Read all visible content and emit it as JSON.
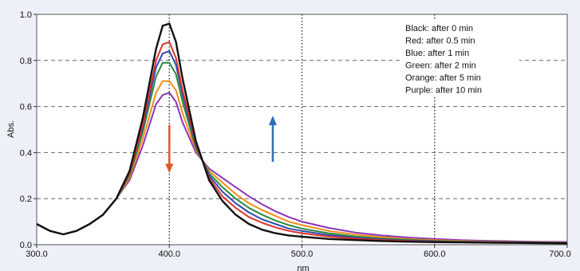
{
  "chart_data": {
    "type": "line",
    "xlabel": "nm",
    "ylabel": "Abs.",
    "xlim": [
      300,
      700
    ],
    "ylim": [
      0,
      1.0
    ],
    "x_ticks": [
      "300.0",
      "400.0",
      "500.0",
      "600.0",
      "700.0"
    ],
    "y_ticks": [
      "0.0",
      "0.2",
      "0.4",
      "0.6",
      "0.8",
      "1.0"
    ],
    "grid": "dotted vertical at 400, 500, 600 nm; dashed horizontal at 0.2-0.8",
    "legend": [
      {
        "text": "Black: after 0 min",
        "color": "#111111"
      },
      {
        "text": "Red: after 0.5 min",
        "color": "#e0322a"
      },
      {
        "text": "Blue: after 1 min",
        "color": "#2f49b0"
      },
      {
        "text": "Green: after 2 min",
        "color": "#2a8a3a"
      },
      {
        "text": "Orange: after 5 min",
        "color": "#f28c1c"
      },
      {
        "text": "Purple: after 10 min",
        "color": "#8a35b8"
      }
    ],
    "legend_position": "top-right",
    "annotations": [
      {
        "type": "arrow-down",
        "x": 400,
        "y_from": 0.52,
        "y_to": 0.31,
        "color": "#e2562a"
      },
      {
        "type": "arrow-up",
        "x": 478,
        "y_from": 0.36,
        "y_to": 0.56,
        "color": "#2d6fb5"
      }
    ],
    "x": [
      300,
      310,
      320,
      330,
      340,
      350,
      360,
      370,
      380,
      390,
      395,
      400,
      405,
      410,
      420,
      430,
      440,
      450,
      460,
      470,
      480,
      490,
      500,
      520,
      540,
      560,
      580,
      600,
      620,
      640,
      660,
      680,
      700
    ],
    "series": [
      {
        "name": "Black",
        "color": "#111111",
        "values": [
          0.09,
          0.06,
          0.045,
          0.06,
          0.09,
          0.13,
          0.2,
          0.32,
          0.55,
          0.85,
          0.95,
          0.96,
          0.88,
          0.72,
          0.45,
          0.28,
          0.19,
          0.13,
          0.09,
          0.065,
          0.05,
          0.04,
          0.035,
          0.025,
          0.02,
          0.016,
          0.013,
          0.011,
          0.01,
          0.009,
          0.008,
          0.007,
          0.006
        ]
      },
      {
        "name": "Red",
        "color": "#e0322a",
        "values": [
          0.09,
          0.06,
          0.045,
          0.06,
          0.09,
          0.13,
          0.2,
          0.31,
          0.52,
          0.8,
          0.87,
          0.88,
          0.81,
          0.67,
          0.44,
          0.29,
          0.21,
          0.16,
          0.12,
          0.095,
          0.075,
          0.06,
          0.05,
          0.035,
          0.026,
          0.02,
          0.016,
          0.013,
          0.011,
          0.01,
          0.009,
          0.008,
          0.007
        ]
      },
      {
        "name": "Blue",
        "color": "#2f49b0",
        "values": [
          0.09,
          0.06,
          0.045,
          0.06,
          0.09,
          0.13,
          0.2,
          0.31,
          0.51,
          0.77,
          0.83,
          0.84,
          0.78,
          0.65,
          0.43,
          0.3,
          0.23,
          0.18,
          0.14,
          0.11,
          0.09,
          0.07,
          0.06,
          0.042,
          0.03,
          0.023,
          0.018,
          0.015,
          0.012,
          0.011,
          0.01,
          0.009,
          0.008
        ]
      },
      {
        "name": "Green",
        "color": "#2a8a3a",
        "values": [
          0.09,
          0.06,
          0.045,
          0.06,
          0.09,
          0.13,
          0.2,
          0.3,
          0.49,
          0.73,
          0.79,
          0.79,
          0.74,
          0.62,
          0.42,
          0.31,
          0.25,
          0.2,
          0.16,
          0.13,
          0.105,
          0.085,
          0.07,
          0.05,
          0.036,
          0.027,
          0.021,
          0.017,
          0.014,
          0.012,
          0.011,
          0.01,
          0.009
        ]
      },
      {
        "name": "Orange",
        "color": "#f28c1c",
        "values": [
          0.09,
          0.06,
          0.045,
          0.06,
          0.09,
          0.13,
          0.2,
          0.29,
          0.46,
          0.66,
          0.71,
          0.71,
          0.67,
          0.57,
          0.41,
          0.32,
          0.27,
          0.22,
          0.18,
          0.15,
          0.125,
          0.1,
          0.085,
          0.06,
          0.044,
          0.033,
          0.025,
          0.02,
          0.016,
          0.014,
          0.012,
          0.011,
          0.01
        ]
      },
      {
        "name": "Purple",
        "color": "#8a35b8",
        "values": [
          0.09,
          0.06,
          0.045,
          0.06,
          0.09,
          0.13,
          0.2,
          0.28,
          0.43,
          0.61,
          0.65,
          0.66,
          0.62,
          0.53,
          0.4,
          0.33,
          0.29,
          0.25,
          0.21,
          0.175,
          0.145,
          0.12,
          0.1,
          0.073,
          0.053,
          0.04,
          0.031,
          0.025,
          0.02,
          0.017,
          0.015,
          0.013,
          0.012
        ]
      }
    ]
  }
}
